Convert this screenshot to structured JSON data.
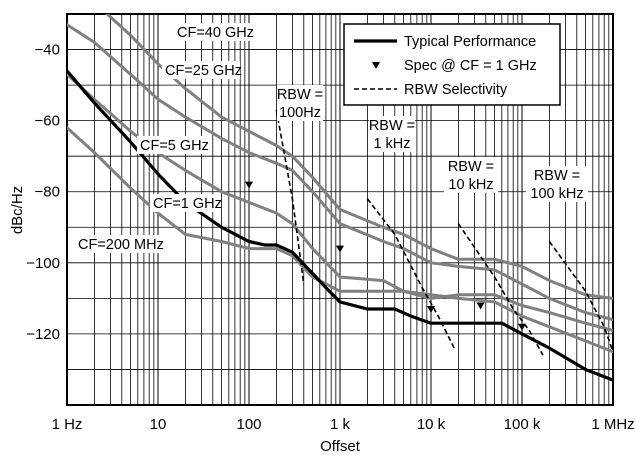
{
  "chart_data": {
    "type": "line",
    "xlabel": "Offset",
    "ylabel": "dBc/Hz",
    "x_scale": "log",
    "xlim": [
      1,
      1000000
    ],
    "ylim": [
      -140,
      -30
    ],
    "grid": true,
    "legend_position": "top-right",
    "x_ticks": [
      {
        "value": 1,
        "label": "1 Hz"
      },
      {
        "value": 10,
        "label": "10"
      },
      {
        "value": 100,
        "label": "100"
      },
      {
        "value": 1000,
        "label": "1 k"
      },
      {
        "value": 10000,
        "label": "10 k"
      },
      {
        "value": 100000,
        "label": "100 k"
      },
      {
        "value": 1000000,
        "label": "1 MHz"
      }
    ],
    "y_ticks": [
      {
        "value": -40,
        "label": "−40"
      },
      {
        "value": -60,
        "label": "−60"
      },
      {
        "value": -80,
        "label": "−80"
      },
      {
        "value": -100,
        "label": "−100"
      },
      {
        "value": -120,
        "label": "−120"
      }
    ],
    "legend": [
      {
        "label": "Typical Performance",
        "style": "thick-solid"
      },
      {
        "label": "Spec @ CF = 1 GHz",
        "style": "triangle"
      },
      {
        "label": "RBW Selectivity",
        "style": "dashed"
      }
    ],
    "series": [
      {
        "name": "CF=40 GHz",
        "color": "#808080",
        "style": "solid",
        "x": [
          2.5,
          5,
          10,
          20,
          50,
          100,
          200,
          300,
          500,
          1000,
          3000,
          5000,
          10000,
          20000,
          50000,
          100000,
          200000,
          500000,
          1000000
        ],
        "y": [
          -29,
          -36,
          -44,
          -51,
          -59,
          -63,
          -67,
          -70,
          -76,
          -85,
          -90,
          -92,
          -96,
          -99,
          -99,
          -101,
          -105,
          -109,
          -110
        ]
      },
      {
        "name": "CF=25 GHz",
        "color": "#808080",
        "style": "solid",
        "x": [
          1,
          2,
          5,
          10,
          20,
          50,
          100,
          200,
          300,
          500,
          1000,
          3000,
          5000,
          10000,
          20000,
          50000,
          100000,
          200000,
          500000,
          1000000
        ],
        "y": [
          -33,
          -38,
          -47,
          -54,
          -59,
          -65,
          -69,
          -72,
          -74,
          -80,
          -89,
          -94,
          -96,
          -100,
          -101,
          -102,
          -106,
          -110,
          -114,
          -116
        ]
      },
      {
        "name": "CF=5 GHz",
        "color": "#808080",
        "style": "solid",
        "x": [
          1,
          2,
          5,
          10,
          20,
          50,
          100,
          200,
          300,
          500,
          1000,
          3000,
          5000,
          10000,
          20000,
          50000,
          100000,
          200000,
          500000,
          1000000
        ],
        "y": [
          -47,
          -54,
          -63,
          -69,
          -74,
          -80,
          -83,
          -86,
          -89,
          -96,
          -104,
          -105,
          -108,
          -109,
          -110,
          -111,
          -115,
          -118,
          -122,
          -125
        ]
      },
      {
        "name": "CF=1 GHz",
        "color": "#808080",
        "style": "solid",
        "x": [
          1,
          2,
          5,
          10,
          20,
          50,
          100,
          200,
          300,
          500,
          1000,
          2000,
          5000,
          10000,
          20000,
          50000,
          100000,
          200000,
          500000,
          1000000
        ],
        "y": [
          -62,
          -69,
          -79,
          -86,
          -92,
          -94,
          -96,
          -96,
          -98,
          -104,
          -108,
          -108,
          -108,
          -110,
          -109,
          -109,
          -112,
          -114,
          -117,
          -119
        ]
      },
      {
        "name": "Typical Performance",
        "color": "#000000",
        "style": "thick",
        "x": [
          1,
          2,
          5,
          10,
          20,
          50,
          100,
          150,
          200,
          300,
          500,
          700,
          1000,
          2000,
          4000,
          6000,
          10000,
          20000,
          60000,
          100000,
          200000,
          500000,
          1000000
        ],
        "y": [
          -46,
          -55,
          -66,
          -75,
          -83,
          -90,
          -94,
          -95,
          -95,
          -97,
          -103,
          -107,
          -111,
          -113,
          -113,
          -115,
          -117,
          -117,
          -117,
          -120,
          -124,
          -130,
          -133
        ]
      },
      {
        "name": "RBW = 100Hz",
        "color": "#000000",
        "style": "dashed",
        "x": [
          200,
          300,
          400
        ],
        "y": [
          -57,
          -82,
          -106
        ]
      },
      {
        "name": "RBW = 1 kHz",
        "color": "#000000",
        "style": "dashed",
        "x": [
          2000,
          4000,
          8000,
          12000,
          18000
        ],
        "y": [
          -82,
          -92,
          -107,
          -115,
          -124
        ]
      },
      {
        "name": "RBW = 10 kHz",
        "color": "#000000",
        "style": "dashed",
        "x": [
          20000,
          50000,
          80000,
          120000,
          170000
        ],
        "y": [
          -89,
          -104,
          -113,
          -119,
          -126
        ]
      },
      {
        "name": "RBW = 100 kHz",
        "color": "#000000",
        "style": "dashed",
        "x": [
          200000,
          500000,
          800000,
          1000000
        ],
        "y": [
          -94,
          -108,
          -118,
          -125
        ]
      }
    ],
    "spec_markers": {
      "label": "Spec @ CF = 1 GHz",
      "points": [
        {
          "x": 100,
          "y": -78
        },
        {
          "x": 1000,
          "y": -96
        },
        {
          "x": 10000,
          "y": -113
        },
        {
          "x": 35000,
          "y": -112
        },
        {
          "x": 100000,
          "y": -118
        }
      ]
    },
    "annotations": [
      {
        "id": "cf40",
        "lines": [
          "CF=40 GHz"
        ]
      },
      {
        "id": "cf25",
        "lines": [
          "CF=25 GHz"
        ]
      },
      {
        "id": "cf5",
        "lines": [
          "CF=5 GHz"
        ]
      },
      {
        "id": "cf1",
        "lines": [
          "CF=1 GHz"
        ]
      },
      {
        "id": "cf200",
        "lines": [
          "CF=200 MHz"
        ]
      },
      {
        "id": "rbw100",
        "lines": [
          "RBW =",
          "100Hz"
        ]
      },
      {
        "id": "rbw1k",
        "lines": [
          "RBW =",
          "1 kHz"
        ]
      },
      {
        "id": "rbw10k",
        "lines": [
          "RBW =",
          "10 kHz"
        ]
      },
      {
        "id": "rbw100k",
        "lines": [
          "RBW =",
          "100 kHz"
        ]
      }
    ]
  }
}
